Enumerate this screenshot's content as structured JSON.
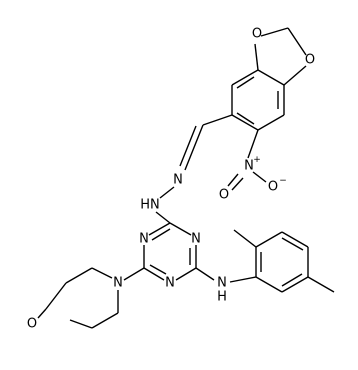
{
  "atoms": {
    "dioxole_o1": "O",
    "dioxole_o2": "O",
    "nitro_n": "N",
    "nitro_charge": "+",
    "nitro_o1": "O",
    "nitro_o2": "O",
    "nitro_o2_charge": "−",
    "hydrazone_n1": "N",
    "hydrazone_n2": "HN",
    "triazine_n1": "N",
    "triazine_n2": "N",
    "triazine_n3": "N",
    "morpholine_n": "N",
    "morpholine_o": "O",
    "amine_n": "N",
    "amine_h": "H"
  }
}
